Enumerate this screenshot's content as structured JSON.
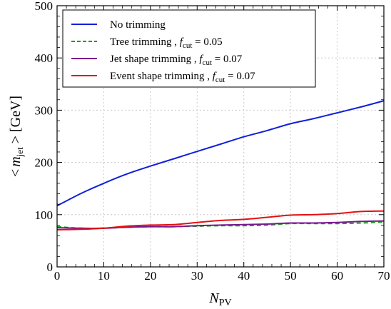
{
  "chart_data": {
    "type": "line",
    "xlabel": "N",
    "xlabel_sub": "PV",
    "ylabel_parts": [
      "<",
      "m",
      "jet",
      " > [GeV]"
    ],
    "xlim": [
      0,
      70
    ],
    "ylim": [
      0,
      500
    ],
    "xticks": [
      0,
      10,
      20,
      30,
      40,
      50,
      60,
      70
    ],
    "yticks": [
      0,
      100,
      200,
      300,
      400,
      500
    ],
    "grid": true,
    "legend_position": "top-left",
    "series": [
      {
        "name": "No trimming",
        "legend_parts": [
          "No trimming"
        ],
        "color": "#1020d8",
        "dash": "none",
        "x": [
          0,
          5,
          10,
          15,
          20,
          25,
          30,
          35,
          40,
          45,
          50,
          55,
          60,
          65,
          70
        ],
        "y": [
          117,
          140,
          160,
          178,
          193,
          207,
          221,
          235,
          249,
          261,
          274,
          284,
          295,
          306,
          318
        ]
      },
      {
        "name": "Tree trimming, f_cut = 0.05",
        "legend_parts": [
          "Tree trimming , ",
          "f",
          "cut",
          " = 0.05"
        ],
        "color": "#209a20",
        "dash": "6,4",
        "x": [
          0,
          5,
          10,
          15,
          20,
          25,
          30,
          35,
          40,
          45,
          50,
          55,
          60,
          65,
          70
        ],
        "y": [
          77,
          74,
          74,
          76,
          77,
          77,
          78,
          79,
          79,
          80,
          83,
          83,
          83,
          84,
          86
        ]
      },
      {
        "name": "Jet shape trimming, f_cut = 0.07",
        "legend_parts": [
          "Jet shape trimming , ",
          "f",
          "cut",
          " = 0.07"
        ],
        "color": "#7a1890",
        "dash": "none",
        "x": [
          0,
          5,
          10,
          15,
          20,
          25,
          30,
          35,
          40,
          45,
          50,
          55,
          60,
          65,
          70
        ],
        "y": [
          75,
          74,
          74,
          76,
          77,
          77,
          79,
          80,
          81,
          82,
          84,
          84,
          85,
          87,
          88
        ]
      },
      {
        "name": "Event shape trimming, f_cut = 0.07",
        "legend_parts": [
          "Event shape trimming , ",
          "f",
          "cut",
          " = 0.07"
        ],
        "color": "#e41010",
        "dash": "none",
        "x": [
          0,
          5,
          10,
          15,
          20,
          25,
          30,
          35,
          40,
          45,
          50,
          55,
          60,
          65,
          70
        ],
        "y": [
          71,
          72,
          74,
          78,
          80,
          81,
          85,
          89,
          91,
          95,
          99,
          100,
          102,
          106,
          107
        ]
      }
    ]
  }
}
